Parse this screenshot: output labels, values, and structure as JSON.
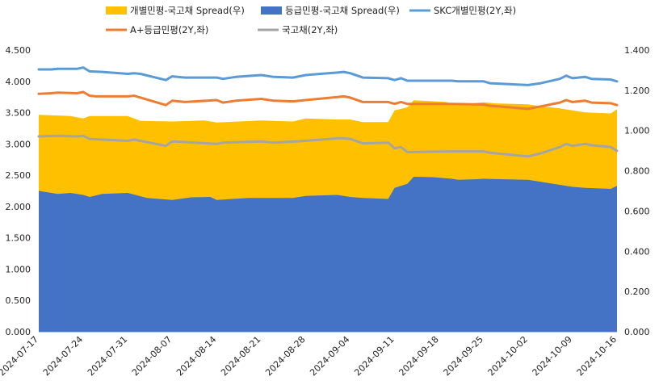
{
  "chart_data": {
    "type": "area",
    "title": "",
    "legend": {
      "placement": "top",
      "entries": [
        {
          "label": "개별민평-국고채 Spread(우)",
          "swatch": "area",
          "color": "#FFC000"
        },
        {
          "label": "등급민평-국고채 Spread(우)",
          "swatch": "area",
          "color": "#4472C4"
        },
        {
          "label": "SKC개별민평(2Y,좌)",
          "swatch": "line",
          "color": "#5B9BD5"
        },
        {
          "label": "A+등급민평(2Y,좌)",
          "swatch": "line",
          "color": "#ED7D31"
        },
        {
          "label": "국고채(2Y,좌)",
          "swatch": "line",
          "color": "#A5A5A5"
        }
      ]
    },
    "x_axis": {
      "type": "date",
      "range": [
        "2024-07-17",
        "2024-10-16"
      ],
      "tick_labels": [
        "2024-07-17",
        "2024-07-24",
        "2024-07-31",
        "2024-08-07",
        "2024-08-14",
        "2024-08-21",
        "2024-08-28",
        "2024-09-04",
        "2024-09-11",
        "2024-09-18",
        "2024-09-25",
        "2024-10-02",
        "2024-10-09",
        "2024-10-16"
      ]
    },
    "y_left": {
      "range": [
        0,
        4.5
      ],
      "tick_labels": [
        "0.000",
        "0.500",
        "1.000",
        "1.500",
        "2.000",
        "2.500",
        "3.000",
        "3.500",
        "4.000",
        "4.500"
      ]
    },
    "y_right": {
      "range": [
        0,
        1.4
      ],
      "tick_labels": [
        "0.000",
        "0.200",
        "0.400",
        "0.600",
        "0.800",
        "1.000",
        "1.200",
        "1.400"
      ]
    },
    "grid": false,
    "series": [
      {
        "name": "개별민평-국고채 Spread(우)",
        "type": "area",
        "axis": "right",
        "color": "#FFC000",
        "points": [
          [
            "2024-07-17",
            1.078
          ],
          [
            "2024-07-22",
            1.072
          ],
          [
            "2024-07-24",
            1.06
          ],
          [
            "2024-07-25",
            1.072
          ],
          [
            "2024-07-31",
            1.072
          ],
          [
            "2024-08-02",
            1.048
          ],
          [
            "2024-08-07",
            1.045
          ],
          [
            "2024-08-12",
            1.05
          ],
          [
            "2024-08-14",
            1.04
          ],
          [
            "2024-08-21",
            1.05
          ],
          [
            "2024-08-26",
            1.045
          ],
          [
            "2024-08-28",
            1.06
          ],
          [
            "2024-09-02",
            1.055
          ],
          [
            "2024-09-04",
            1.055
          ],
          [
            "2024-09-06",
            1.042
          ],
          [
            "2024-09-10",
            1.042
          ],
          [
            "2024-09-11",
            1.1
          ],
          [
            "2024-09-13",
            1.115
          ],
          [
            "2024-09-14",
            1.15
          ],
          [
            "2024-09-19",
            1.142
          ],
          [
            "2024-09-20",
            1.135
          ],
          [
            "2024-09-23",
            1.135
          ],
          [
            "2024-09-25",
            1.14
          ],
          [
            "2024-09-27",
            1.135
          ],
          [
            "2024-10-02",
            1.13
          ],
          [
            "2024-10-04",
            1.12
          ],
          [
            "2024-10-07",
            1.11
          ],
          [
            "2024-10-09",
            1.1
          ],
          [
            "2024-10-11",
            1.09
          ],
          [
            "2024-10-15",
            1.085
          ],
          [
            "2024-10-16",
            1.105
          ]
        ]
      },
      {
        "name": "등급민평-국고채 Spread(우)",
        "type": "area",
        "axis": "right",
        "color": "#4472C4",
        "points": [
          [
            "2024-07-17",
            0.7
          ],
          [
            "2024-07-20",
            0.685
          ],
          [
            "2024-07-22",
            0.69
          ],
          [
            "2024-07-24",
            0.68
          ],
          [
            "2024-07-25",
            0.67
          ],
          [
            "2024-07-27",
            0.685
          ],
          [
            "2024-07-31",
            0.69
          ],
          [
            "2024-08-03",
            0.665
          ],
          [
            "2024-08-07",
            0.655
          ],
          [
            "2024-08-10",
            0.668
          ],
          [
            "2024-08-13",
            0.67
          ],
          [
            "2024-08-14",
            0.655
          ],
          [
            "2024-08-19",
            0.665
          ],
          [
            "2024-08-26",
            0.665
          ],
          [
            "2024-08-28",
            0.675
          ],
          [
            "2024-09-02",
            0.68
          ],
          [
            "2024-09-04",
            0.67
          ],
          [
            "2024-09-06",
            0.665
          ],
          [
            "2024-09-10",
            0.66
          ],
          [
            "2024-09-11",
            0.715
          ],
          [
            "2024-09-13",
            0.735
          ],
          [
            "2024-09-14",
            0.77
          ],
          [
            "2024-09-17",
            0.768
          ],
          [
            "2024-09-20",
            0.76
          ],
          [
            "2024-09-21",
            0.755
          ],
          [
            "2024-09-24",
            0.758
          ],
          [
            "2024-09-25",
            0.76
          ],
          [
            "2024-10-02",
            0.755
          ],
          [
            "2024-10-06",
            0.735
          ],
          [
            "2024-10-09",
            0.72
          ],
          [
            "2024-10-11",
            0.715
          ],
          [
            "2024-10-15",
            0.71
          ],
          [
            "2024-10-16",
            0.725
          ]
        ]
      },
      {
        "name": "SKC개별민평(2Y,좌)",
        "type": "line",
        "axis": "left",
        "color": "#5B9BD5",
        "points": [
          [
            "2024-07-17",
            4.19
          ],
          [
            "2024-07-19",
            4.19
          ],
          [
            "2024-07-20",
            4.2
          ],
          [
            "2024-07-23",
            4.2
          ],
          [
            "2024-07-24",
            4.22
          ],
          [
            "2024-07-25",
            4.16
          ],
          [
            "2024-07-27",
            4.15
          ],
          [
            "2024-07-31",
            4.12
          ],
          [
            "2024-08-01",
            4.13
          ],
          [
            "2024-08-02",
            4.12
          ],
          [
            "2024-08-06",
            4.02
          ],
          [
            "2024-08-07",
            4.08
          ],
          [
            "2024-08-09",
            4.06
          ],
          [
            "2024-08-14",
            4.06
          ],
          [
            "2024-08-15",
            4.04
          ],
          [
            "2024-08-17",
            4.07
          ],
          [
            "2024-08-21",
            4.1
          ],
          [
            "2024-08-23",
            4.07
          ],
          [
            "2024-08-26",
            4.06
          ],
          [
            "2024-08-28",
            4.1
          ],
          [
            "2024-09-02",
            4.14
          ],
          [
            "2024-09-03",
            4.15
          ],
          [
            "2024-09-04",
            4.13
          ],
          [
            "2024-09-06",
            4.06
          ],
          [
            "2024-09-10",
            4.05
          ],
          [
            "2024-09-11",
            4.02
          ],
          [
            "2024-09-12",
            4.05
          ],
          [
            "2024-09-13",
            4.01
          ],
          [
            "2024-09-20",
            4.01
          ],
          [
            "2024-09-21",
            4.0
          ],
          [
            "2024-09-25",
            4.0
          ],
          [
            "2024-09-26",
            3.97
          ],
          [
            "2024-10-02",
            3.94
          ],
          [
            "2024-10-04",
            3.97
          ],
          [
            "2024-10-07",
            4.04
          ],
          [
            "2024-10-08",
            4.09
          ],
          [
            "2024-10-09",
            4.05
          ],
          [
            "2024-10-11",
            4.07
          ],
          [
            "2024-10-12",
            4.04
          ],
          [
            "2024-10-15",
            4.03
          ],
          [
            "2024-10-16",
            4.0
          ]
        ]
      },
      {
        "name": "A+등급민평(2Y,좌)",
        "type": "line",
        "axis": "left",
        "color": "#ED7D31",
        "points": [
          [
            "2024-07-17",
            3.8
          ],
          [
            "2024-07-19",
            3.81
          ],
          [
            "2024-07-20",
            3.82
          ],
          [
            "2024-07-23",
            3.81
          ],
          [
            "2024-07-24",
            3.83
          ],
          [
            "2024-07-25",
            3.77
          ],
          [
            "2024-07-26",
            3.76
          ],
          [
            "2024-07-31",
            3.76
          ],
          [
            "2024-08-01",
            3.77
          ],
          [
            "2024-08-06",
            3.62
          ],
          [
            "2024-08-07",
            3.69
          ],
          [
            "2024-08-09",
            3.67
          ],
          [
            "2024-08-14",
            3.7
          ],
          [
            "2024-08-15",
            3.66
          ],
          [
            "2024-08-17",
            3.69
          ],
          [
            "2024-08-21",
            3.72
          ],
          [
            "2024-08-23",
            3.69
          ],
          [
            "2024-08-26",
            3.68
          ],
          [
            "2024-08-28",
            3.7
          ],
          [
            "2024-09-02",
            3.75
          ],
          [
            "2024-09-03",
            3.76
          ],
          [
            "2024-09-04",
            3.74
          ],
          [
            "2024-09-06",
            3.67
          ],
          [
            "2024-09-10",
            3.67
          ],
          [
            "2024-09-11",
            3.64
          ],
          [
            "2024-09-12",
            3.67
          ],
          [
            "2024-09-13",
            3.64
          ],
          [
            "2024-09-20",
            3.64
          ],
          [
            "2024-09-25",
            3.63
          ],
          [
            "2024-09-26",
            3.61
          ],
          [
            "2024-10-02",
            3.56
          ],
          [
            "2024-10-04",
            3.6
          ],
          [
            "2024-10-07",
            3.66
          ],
          [
            "2024-10-08",
            3.7
          ],
          [
            "2024-10-09",
            3.67
          ],
          [
            "2024-10-11",
            3.69
          ],
          [
            "2024-10-12",
            3.66
          ],
          [
            "2024-10-15",
            3.65
          ],
          [
            "2024-10-16",
            3.62
          ]
        ]
      },
      {
        "name": "국고채(2Y,좌)",
        "type": "line",
        "axis": "left",
        "color": "#A5A5A5",
        "points": [
          [
            "2024-07-17",
            3.12
          ],
          [
            "2024-07-20",
            3.13
          ],
          [
            "2024-07-23",
            3.12
          ],
          [
            "2024-07-24",
            3.13
          ],
          [
            "2024-07-25",
            3.08
          ],
          [
            "2024-07-31",
            3.05
          ],
          [
            "2024-08-01",
            3.07
          ],
          [
            "2024-08-02",
            3.05
          ],
          [
            "2024-08-06",
            2.97
          ],
          [
            "2024-08-07",
            3.04
          ],
          [
            "2024-08-09",
            3.03
          ],
          [
            "2024-08-14",
            3.0
          ],
          [
            "2024-08-15",
            3.02
          ],
          [
            "2024-08-21",
            3.04
          ],
          [
            "2024-08-23",
            3.02
          ],
          [
            "2024-08-28",
            3.05
          ],
          [
            "2024-09-02",
            3.09
          ],
          [
            "2024-09-03",
            3.09
          ],
          [
            "2024-09-04",
            3.08
          ],
          [
            "2024-09-06",
            3.01
          ],
          [
            "2024-09-10",
            3.02
          ],
          [
            "2024-09-11",
            2.93
          ],
          [
            "2024-09-12",
            2.95
          ],
          [
            "2024-09-13",
            2.87
          ],
          [
            "2024-09-20",
            2.88
          ],
          [
            "2024-09-25",
            2.88
          ],
          [
            "2024-09-26",
            2.86
          ],
          [
            "2024-10-02",
            2.8
          ],
          [
            "2024-10-04",
            2.85
          ],
          [
            "2024-10-07",
            2.95
          ],
          [
            "2024-10-08",
            3.0
          ],
          [
            "2024-10-09",
            2.97
          ],
          [
            "2024-10-11",
            3.0
          ],
          [
            "2024-10-12",
            2.98
          ],
          [
            "2024-10-15",
            2.95
          ],
          [
            "2024-10-16",
            2.89
          ]
        ]
      }
    ]
  }
}
